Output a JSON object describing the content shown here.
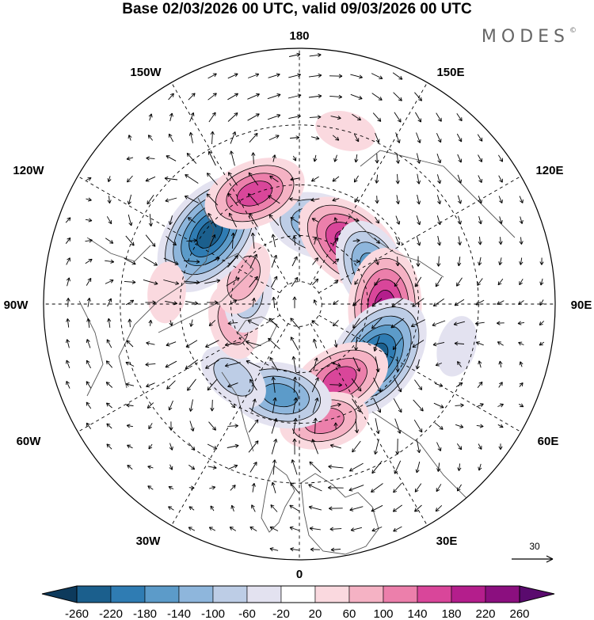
{
  "title": "Base 02/03/2026 00 UTC, valid 09/03/2026 00 UTC",
  "brand": "MODES",
  "brand_mark": "©",
  "longitude_labels": {
    "l180": "180",
    "l150w": "150W",
    "l150e": "150E",
    "l120w": "120W",
    "l120e": "120E",
    "l90w": "90W",
    "l90e": "90E",
    "l60w": "60W",
    "l60e": "60E",
    "l30w": "30W",
    "l30e": "30E",
    "l0": "0"
  },
  "reference_vector": {
    "label": "30"
  },
  "colorbar": {
    "labels": [
      "-260",
      "-220",
      "-180",
      "-140",
      "-100",
      "-60",
      "-20",
      "20",
      "60",
      "100",
      "140",
      "180",
      "220",
      "260"
    ],
    "colors": [
      "#0d3a5c",
      "#1b5f8d",
      "#2f7cb3",
      "#5c9bc9",
      "#8eb6dc",
      "#bdcde6",
      "#e3e2f0",
      "#ffffff",
      "#fad9df",
      "#f5b2c4",
      "#ec7fab",
      "#d9469a",
      "#b41e8c",
      "#8b0f7f",
      "#5a0a6e"
    ]
  },
  "anomalies": [
    {
      "lon": 165,
      "lat": 55,
      "value": -150
    },
    {
      "lon": 140,
      "lat": 56,
      "value": 200
    },
    {
      "lon": 115,
      "lat": 55,
      "value": -170
    },
    {
      "lon": 88,
      "lat": 53,
      "value": 190
    },
    {
      "lon": 55,
      "lat": 50,
      "value": -250
    },
    {
      "lon": 28,
      "lat": 53,
      "value": 180
    },
    {
      "lon": 12,
      "lat": 40,
      "value": 140
    },
    {
      "lon": -12,
      "lat": 50,
      "value": -170
    },
    {
      "lon": -42,
      "lat": 48,
      "value": -70
    },
    {
      "lon": -75,
      "lat": 60,
      "value": 80
    },
    {
      "lon": -100,
      "lat": 67,
      "value": -90
    },
    {
      "lon": -115,
      "lat": 63,
      "value": 90
    },
    {
      "lon": -128,
      "lat": 42,
      "value": -230
    },
    {
      "lon": -158,
      "lat": 40,
      "value": 150
    },
    {
      "lon": -95,
      "lat": 35,
      "value": 50
    },
    {
      "lon": 165,
      "lat": 20,
      "value": 60
    },
    {
      "lon": 75,
      "lat": 25,
      "value": -40
    }
  ]
}
